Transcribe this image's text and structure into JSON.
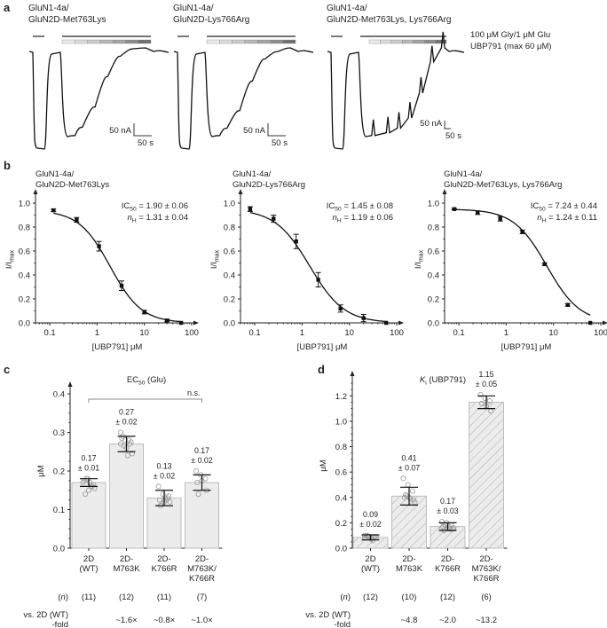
{
  "panels": {
    "a": "a",
    "b": "b",
    "c": "c",
    "d": "d"
  },
  "panel_a": {
    "legend": {
      "line1": "100 μM Gly/1 μM Glu",
      "line2": "UBP791 (max 60 μM)"
    },
    "gradient_steps": [
      "#ececec",
      "#dcdcdc",
      "#cbcbcb",
      "#b7b7b7",
      "#a2a2a2",
      "#8b8b8b",
      "#707070"
    ],
    "traces": [
      {
        "title1": "GluN1-4a/",
        "title2": "GluN2D-Met763Lys",
        "scale_y": "50 nA",
        "scale_x": "50 s",
        "steady": [
          0.95,
          0.86,
          0.64,
          0.31,
          0.09,
          0.01,
          0.0
        ]
      },
      {
        "title1": "GluN1-4a/",
        "title2": "GluN2D-Lys766Arg",
        "scale_y": "50 nA",
        "scale_x": "50 s",
        "steady": [
          0.95,
          0.87,
          0.68,
          0.36,
          0.12,
          0.04,
          0.0
        ]
      },
      {
        "title1": "GluN1-4a/",
        "title2": "GluN2D-Met763Lys, Lys766Arg",
        "scale_y": "50 nA",
        "scale_x": "50 s",
        "steady": [
          0.95,
          0.92,
          0.87,
          0.76,
          0.49,
          0.15,
          0.0
        ]
      }
    ]
  },
  "chart_data": [
    {
      "type": "scatter",
      "title": "GluN1-4a/ GluN2D-Met763Lys",
      "title1": "GluN1-4a/",
      "title2": "GluN2D-Met763Lys",
      "xlabel": "[UBP791] μM",
      "ylabel": "I/Imax",
      "xscale": "log",
      "xlim": [
        0.05,
        100
      ],
      "ylim": [
        0,
        1.0
      ],
      "xticks": [
        "0.1",
        "1",
        "10",
        "100"
      ],
      "yticks": [
        "0.0",
        "0.2",
        "0.4",
        "0.6",
        "0.8",
        "1.0"
      ],
      "x": [
        0.12,
        0.37,
        1.1,
        3.3,
        10,
        30,
        60
      ],
      "y": [
        0.94,
        0.86,
        0.64,
        0.31,
        0.09,
        0.02,
        0.0
      ],
      "err": [
        0.01,
        0.02,
        0.04,
        0.04,
        0.015,
        0.01,
        0.0
      ],
      "fit": {
        "ic50": 1.9,
        "nH": 1.31
      },
      "annotation": {
        "ic50_label": "IC",
        "ic50_sub": "50",
        "ic50_text": " = 1.90 ± 0.06",
        "nh_label": "n",
        "nh_sub": "H",
        "nh_text": " = 1.31 ± 0.04"
      }
    },
    {
      "type": "scatter",
      "title": "GluN1-4a/ GluN2D-Lys766Arg",
      "title1": "GluN1-4a/",
      "title2": "GluN2D-Lys766Arg",
      "xlabel": "[UBP791] μM",
      "ylabel": "I/Imax",
      "xscale": "log",
      "xlim": [
        0.05,
        100
      ],
      "ylim": [
        0,
        1.0
      ],
      "xticks": [
        "0.1",
        "1",
        "10",
        "100"
      ],
      "yticks": [
        "0.0",
        "0.2",
        "0.4",
        "0.6",
        "0.8",
        "1.0"
      ],
      "x": [
        0.08,
        0.25,
        0.75,
        2.2,
        6.5,
        20,
        60
      ],
      "y": [
        0.95,
        0.87,
        0.68,
        0.36,
        0.12,
        0.04,
        0.0
      ],
      "err": [
        0.02,
        0.03,
        0.06,
        0.06,
        0.03,
        0.03,
        0.0
      ],
      "fit": {
        "ic50": 1.45,
        "nH": 1.19
      },
      "annotation": {
        "ic50_label": "IC",
        "ic50_sub": "50",
        "ic50_text": " = 1.45 ± 0.08",
        "nh_label": "n",
        "nh_sub": "H",
        "nh_text": " = 1.19 ± 0.06"
      }
    },
    {
      "type": "scatter",
      "title": "GluN1-4a/ GluN2D-Met763Lys, Lys766Arg",
      "title1": "GluN1-4a/",
      "title2": "GluN2D-Met763Lys, Lys766Arg",
      "xlabel": "[UBP791] μM",
      "ylabel": "I/Imax",
      "xscale": "log",
      "xlim": [
        0.05,
        100
      ],
      "ylim": [
        0,
        1.0
      ],
      "xticks": [
        "0.1",
        "1",
        "10",
        "100"
      ],
      "yticks": [
        "0.0",
        "0.2",
        "0.4",
        "0.6",
        "0.8",
        "1.0"
      ],
      "x": [
        0.08,
        0.25,
        0.75,
        2.2,
        6.5,
        20,
        60
      ],
      "y": [
        0.95,
        0.92,
        0.87,
        0.76,
        0.49,
        0.15,
        0.0
      ],
      "err": [
        0.005,
        0.015,
        0.02,
        0.015,
        0.01,
        0.01,
        0.0
      ],
      "fit": {
        "ic50": 7.24,
        "nH": 1.24
      },
      "annotation": {
        "ic50_label": "IC",
        "ic50_sub": "50",
        "ic50_text": " = 7.24 ± 0.44",
        "nh_label": "n",
        "nh_sub": "H",
        "nh_text": " = 1.24 ± 0.11"
      }
    },
    {
      "type": "bar",
      "title": "EC50 (Glu)",
      "title_main": "EC",
      "title_sub": "50",
      "title_rest": " (Glu)",
      "ylabel": "μM",
      "ylim": [
        0,
        0.4
      ],
      "yticks": [
        "0.0",
        "0.1",
        "0.2",
        "0.3",
        "0.4"
      ],
      "categories": [
        [
          "2D",
          "(WT)"
        ],
        [
          "2D-",
          "M763K"
        ],
        [
          "2D-",
          "K766R"
        ],
        [
          "2D-",
          "M763K/",
          "K766R"
        ]
      ],
      "values": [
        0.17,
        0.27,
        0.13,
        0.17
      ],
      "errors": [
        0.01,
        0.02,
        0.02,
        0.02
      ],
      "value_labels": [
        [
          "0.17",
          "± 0.01"
        ],
        [
          "0.27",
          "± 0.02"
        ],
        [
          "0.13",
          "± 0.02"
        ],
        [
          "0.17",
          "± 0.02"
        ]
      ],
      "points": [
        [
          0.17,
          0.18,
          0.16,
          0.175,
          0.15,
          0.165,
          0.14,
          0.17,
          0.155,
          0.18,
          0.16
        ],
        [
          0.3,
          0.28,
          0.27,
          0.285,
          0.26,
          0.275,
          0.29,
          0.24,
          0.245,
          0.265,
          0.28,
          0.27
        ],
        [
          0.16,
          0.14,
          0.13,
          0.125,
          0.12,
          0.135,
          0.11,
          0.13,
          0.12,
          0.115,
          0.125
        ],
        [
          0.2,
          0.19,
          0.18,
          0.17,
          0.175,
          0.15,
          0.14
        ]
      ],
      "n_label": "(n)",
      "n": [
        "(11)",
        "(12)",
        "(11)",
        "(7)"
      ],
      "fold_label1": "vs. 2D (WT)",
      "fold_label2": "-fold",
      "fold": [
        "",
        "~1.6×",
        "~0.8×",
        "~1.0×"
      ],
      "significance": "n.s.",
      "bar_fill": "#ececec",
      "bar_pattern": "plain"
    },
    {
      "type": "bar",
      "title": "Ki (UBP791)",
      "title_main": "K",
      "title_sub": "i",
      "title_rest": " (UBP791)",
      "ylabel": "μM",
      "ylim": [
        0,
        1.3
      ],
      "yticks": [
        "0.0",
        "0.2",
        "0.4",
        "0.6",
        "0.8",
        "1.0",
        "1.2"
      ],
      "categories": [
        [
          "2D",
          "(WT)"
        ],
        [
          "2D-",
          "M763K"
        ],
        [
          "2D-",
          "K766R"
        ],
        [
          "2D-",
          "M763K/",
          "K766R"
        ]
      ],
      "values": [
        0.085,
        0.41,
        0.17,
        1.15
      ],
      "errors": [
        0.02,
        0.07,
        0.03,
        0.05
      ],
      "value_labels": [
        [
          "0.09",
          "± 0.02"
        ],
        [
          "0.41",
          "± 0.07"
        ],
        [
          "0.17",
          "± 0.03"
        ],
        [
          "1.15",
          "± 0.05"
        ]
      ],
      "points": [
        [
          0.1,
          0.09,
          0.085,
          0.08,
          0.075,
          0.09,
          0.1,
          0.07,
          0.085,
          0.095,
          0.06,
          0.08
        ],
        [
          0.55,
          0.5,
          0.45,
          0.4,
          0.4,
          0.38,
          0.42,
          0.39,
          0.36,
          0.41
        ],
        [
          0.21,
          0.2,
          0.18,
          0.17,
          0.16,
          0.15,
          0.14,
          0.17,
          0.16,
          0.18,
          0.15,
          0.16
        ],
        [
          1.21,
          1.18,
          1.16,
          1.14,
          1.12,
          1.08
        ]
      ],
      "n_label": "(n)",
      "n": [
        "(12)",
        "(10)",
        "(12)",
        "(6)"
      ],
      "fold_label1": "vs. 2D (WT)",
      "fold_label2": "-fold",
      "fold": [
        "",
        "~4.8",
        "~2.0",
        "~13.2"
      ],
      "bar_fill": "#ececec",
      "bar_pattern": "hatched"
    }
  ]
}
